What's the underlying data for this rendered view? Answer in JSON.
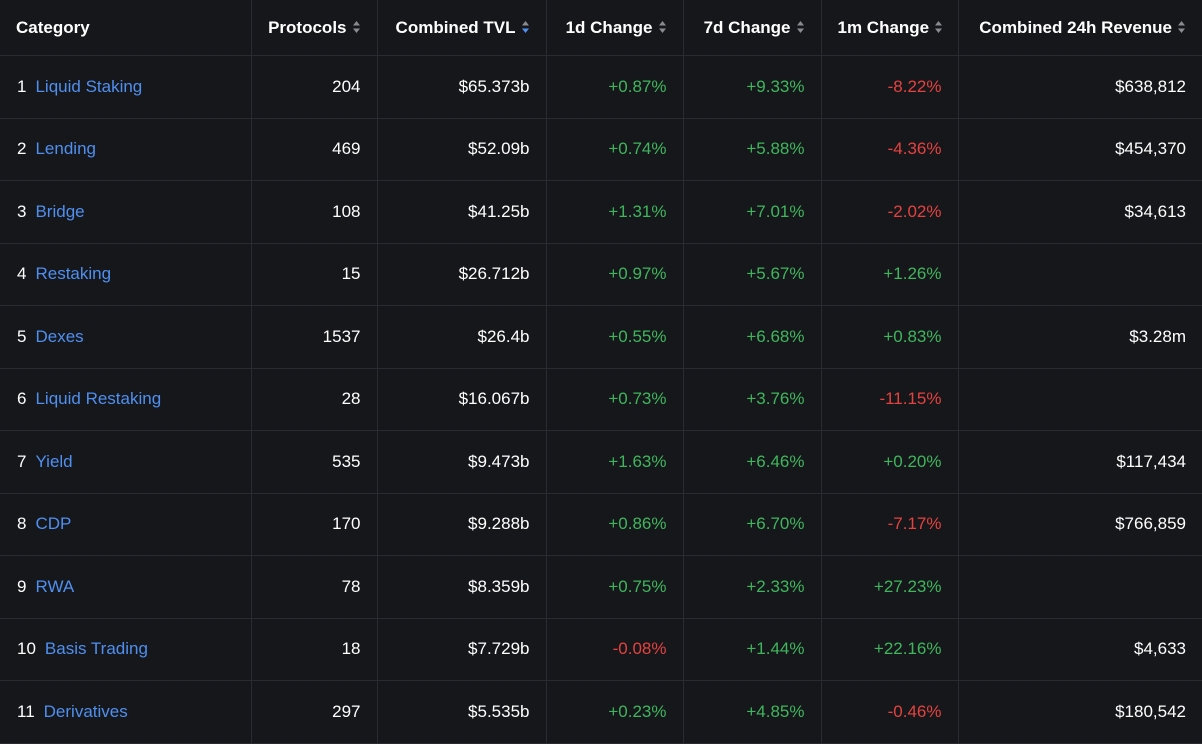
{
  "header": {
    "category": "Category",
    "protocols": "Protocols",
    "combined_tvl": "Combined TVL",
    "change_1d": "1d Change",
    "change_7d": "7d Change",
    "change_1m": "1m Change",
    "revenue_24h": "Combined 24h Revenue"
  },
  "colors": {
    "background": "#16171b",
    "link": "#4f8ff0",
    "positive": "#3fb65c",
    "negative": "#e5423f",
    "sort_active": "#4f8ff0"
  },
  "rows": [
    {
      "rank": "1",
      "category": "Liquid Staking",
      "protocols": "204",
      "tvl": "$65.373b",
      "d1": "+0.87%",
      "d7": "+9.33%",
      "m1": "-8.22%",
      "revenue": "$638,812"
    },
    {
      "rank": "2",
      "category": "Lending",
      "protocols": "469",
      "tvl": "$52.09b",
      "d1": "+0.74%",
      "d7": "+5.88%",
      "m1": "-4.36%",
      "revenue": "$454,370"
    },
    {
      "rank": "3",
      "category": "Bridge",
      "protocols": "108",
      "tvl": "$41.25b",
      "d1": "+1.31%",
      "d7": "+7.01%",
      "m1": "-2.02%",
      "revenue": "$34,613"
    },
    {
      "rank": "4",
      "category": "Restaking",
      "protocols": "15",
      "tvl": "$26.712b",
      "d1": "+0.97%",
      "d7": "+5.67%",
      "m1": "+1.26%",
      "revenue": ""
    },
    {
      "rank": "5",
      "category": "Dexes",
      "protocols": "1537",
      "tvl": "$26.4b",
      "d1": "+0.55%",
      "d7": "+6.68%",
      "m1": "+0.83%",
      "revenue": "$3.28m"
    },
    {
      "rank": "6",
      "category": "Liquid Restaking",
      "protocols": "28",
      "tvl": "$16.067b",
      "d1": "+0.73%",
      "d7": "+3.76%",
      "m1": "-11.15%",
      "revenue": ""
    },
    {
      "rank": "7",
      "category": "Yield",
      "protocols": "535",
      "tvl": "$9.473b",
      "d1": "+1.63%",
      "d7": "+6.46%",
      "m1": "+0.20%",
      "revenue": "$117,434"
    },
    {
      "rank": "8",
      "category": "CDP",
      "protocols": "170",
      "tvl": "$9.288b",
      "d1": "+0.86%",
      "d7": "+6.70%",
      "m1": "-7.17%",
      "revenue": "$766,859"
    },
    {
      "rank": "9",
      "category": "RWA",
      "protocols": "78",
      "tvl": "$8.359b",
      "d1": "+0.75%",
      "d7": "+2.33%",
      "m1": "+27.23%",
      "revenue": ""
    },
    {
      "rank": "10",
      "category": "Basis Trading",
      "protocols": "18",
      "tvl": "$7.729b",
      "d1": "-0.08%",
      "d7": "+1.44%",
      "m1": "+22.16%",
      "revenue": "$4,633"
    },
    {
      "rank": "11",
      "category": "Derivatives",
      "protocols": "297",
      "tvl": "$5.535b",
      "d1": "+0.23%",
      "d7": "+4.85%",
      "m1": "-0.46%",
      "revenue": "$180,542"
    }
  ]
}
